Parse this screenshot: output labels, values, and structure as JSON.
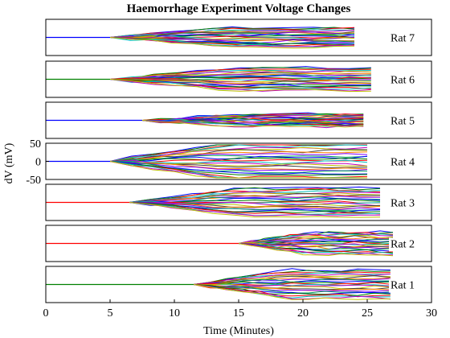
{
  "chart_data": {
    "type": "line",
    "title": "Haemorrhage Experiment Voltage Changes",
    "xlabel": "Time (Minutes)",
    "ylabel": "dV (mV)",
    "xlim": [
      0,
      30
    ],
    "xticks": [
      0,
      5,
      10,
      15,
      20,
      25,
      30
    ],
    "ylim": [
      -50,
      50
    ],
    "yticks": [
      50,
      0,
      -50
    ],
    "grid": false,
    "panels": [
      {
        "label": "Rat 7",
        "baseline_color": "#0000ff",
        "onset": 5.0,
        "end": 24.0,
        "half_spread": 12
      },
      {
        "label": "Rat 6",
        "baseline_color": "#008000",
        "onset": 5.0,
        "end": 25.3,
        "half_spread": 14
      },
      {
        "label": "Rat 5",
        "baseline_color": "#0000ff",
        "onset": 7.5,
        "end": 24.7,
        "half_spread": 8
      },
      {
        "label": "Rat 4",
        "baseline_color": "#0000ff",
        "onset": 5.0,
        "end": 25.0,
        "half_spread": 25
      },
      {
        "label": "Rat 3",
        "baseline_color": "#ff0000",
        "onset": 6.5,
        "end": 26.0,
        "half_spread": 18
      },
      {
        "label": "Rat 2",
        "baseline_color": "#ff0000",
        "onset": 15.0,
        "end": 27.0,
        "half_spread": 14
      },
      {
        "label": "Rat 1",
        "baseline_color": "#008000",
        "onset": 11.5,
        "end": 26.8,
        "half_spread": 18
      }
    ],
    "trace_colors": [
      "#0000ff",
      "#008000",
      "#ff0000",
      "#00bfbf",
      "#bf00bf",
      "#bfbf00",
      "#404040",
      "#ff8000",
      "#8000ff",
      "#00a060"
    ]
  }
}
